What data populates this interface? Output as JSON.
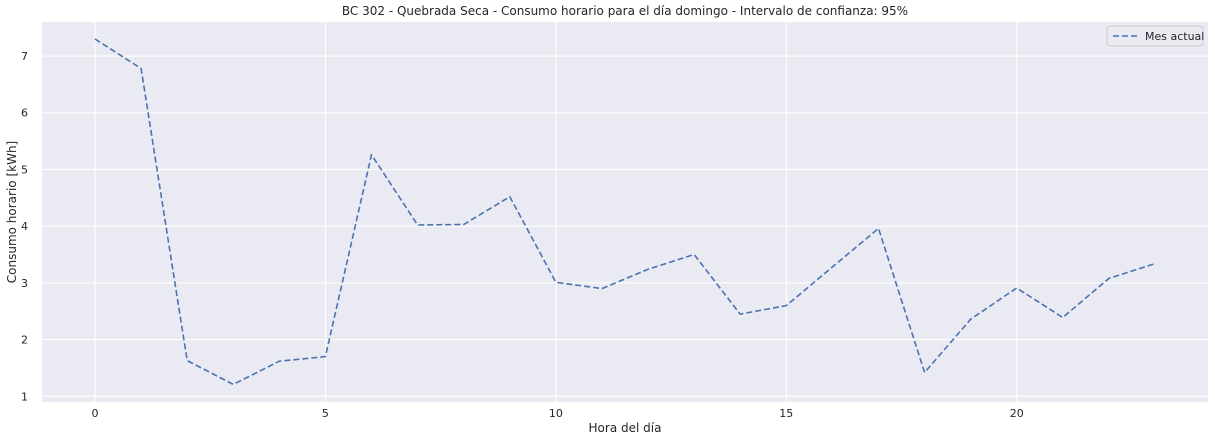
{
  "chart_data": {
    "type": "line",
    "title": "BC 302 - Quebrada Seca - Consumo horario para el día domingo - Intervalo de confianza: 95%",
    "xlabel": "Hora del día",
    "ylabel": "Consumo horario [kWh]",
    "x": [
      0,
      1,
      2,
      3,
      4,
      5,
      6,
      7,
      8,
      9,
      10,
      11,
      12,
      13,
      14,
      15,
      16,
      17,
      18,
      19,
      20,
      21,
      22,
      23
    ],
    "series": [
      {
        "name": "Mes actual",
        "values": [
          7.3,
          6.78,
          1.63,
          1.21,
          1.62,
          1.7,
          5.26,
          4.02,
          4.03,
          4.52,
          3.01,
          2.9,
          3.24,
          3.5,
          2.45,
          2.6,
          3.28,
          3.96,
          1.42,
          2.36,
          2.91,
          2.39,
          3.08,
          3.34
        ],
        "color": "#4c72b0",
        "style": "dashed"
      }
    ],
    "xlim": [
      -1.15,
      24.15
    ],
    "ylim": [
      0.9,
      7.6
    ],
    "x_ticks": [
      "0",
      "5",
      "10",
      "15",
      "20"
    ],
    "x_tick_values": [
      0,
      5,
      10,
      15,
      20
    ],
    "y_ticks": [
      "1",
      "2",
      "3",
      "4",
      "5",
      "6",
      "7"
    ],
    "y_tick_values": [
      1,
      2,
      3,
      4,
      5,
      6,
      7
    ],
    "grid": true,
    "legend_position": "top-right",
    "background": "#eaeaf2",
    "grid_color": "#ffffff"
  }
}
